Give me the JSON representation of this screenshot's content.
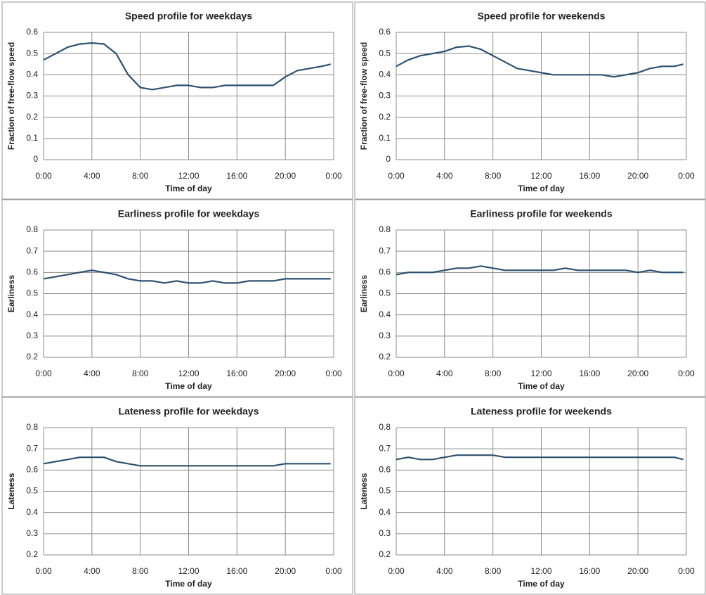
{
  "chart_data": [
    {
      "type": "line",
      "title": "Speed profile for weekdays",
      "x_label": "Time of day",
      "y_label": "Fraction of free-flow speed",
      "color": "#2e5070",
      "grid": true,
      "x": [
        0,
        1,
        2,
        3,
        4,
        5,
        6,
        7,
        8,
        9,
        10,
        11,
        12,
        13,
        14,
        15,
        16,
        17,
        18,
        19,
        20,
        21,
        22,
        23,
        23.75
      ],
      "values": [
        0.47,
        0.5,
        0.53,
        0.545,
        0.55,
        0.545,
        0.5,
        0.4,
        0.34,
        0.33,
        0.34,
        0.35,
        0.35,
        0.34,
        0.34,
        0.35,
        0.35,
        0.35,
        0.35,
        0.35,
        0.39,
        0.42,
        0.43,
        0.44,
        0.45
      ],
      "xlim": [
        0,
        24
      ],
      "xticks": [
        {
          "value": 0,
          "label": "0:00"
        },
        {
          "value": 4,
          "label": "4:00"
        },
        {
          "value": 8,
          "label": "8:00"
        },
        {
          "value": 12,
          "label": "12:00"
        },
        {
          "value": 16,
          "label": "16:00"
        },
        {
          "value": 20,
          "label": "20:00"
        },
        {
          "value": 24,
          "label": "0:00"
        }
      ],
      "ylim": [
        0,
        0.6
      ],
      "yticks": [
        0,
        0.1,
        0.2,
        0.3,
        0.4,
        0.5,
        0.6
      ]
    },
    {
      "type": "line",
      "title": "Speed profile for weekends",
      "x_label": "Time of day",
      "y_label": "Fraction of free-flow speed",
      "color": "#2e5070",
      "grid": true,
      "x": [
        0,
        1,
        2,
        3,
        4,
        5,
        6,
        7,
        8,
        9,
        10,
        11,
        12,
        13,
        14,
        15,
        16,
        17,
        18,
        19,
        20,
        21,
        22,
        23,
        23.75
      ],
      "values": [
        0.44,
        0.47,
        0.49,
        0.5,
        0.51,
        0.53,
        0.535,
        0.52,
        0.49,
        0.46,
        0.43,
        0.42,
        0.41,
        0.4,
        0.4,
        0.4,
        0.4,
        0.4,
        0.39,
        0.4,
        0.41,
        0.43,
        0.44,
        0.44,
        0.45
      ],
      "xlim": [
        0,
        24
      ],
      "xticks": [
        {
          "value": 0,
          "label": "0:00"
        },
        {
          "value": 4,
          "label": "4:00"
        },
        {
          "value": 8,
          "label": "8:00"
        },
        {
          "value": 12,
          "label": "12:00"
        },
        {
          "value": 16,
          "label": "16:00"
        },
        {
          "value": 20,
          "label": "20:00"
        },
        {
          "value": 24,
          "label": "0:00"
        }
      ],
      "ylim": [
        0,
        0.6
      ],
      "yticks": [
        0,
        0.1,
        0.2,
        0.3,
        0.4,
        0.5,
        0.6
      ]
    },
    {
      "type": "line",
      "title": "Earliness profile for weekdays",
      "x_label": "Time of day",
      "y_label": "Earliness",
      "color": "#2e5070",
      "grid": true,
      "x": [
        0,
        1,
        2,
        3,
        4,
        5,
        6,
        7,
        8,
        9,
        10,
        11,
        12,
        13,
        14,
        15,
        16,
        17,
        18,
        19,
        20,
        21,
        22,
        23,
        23.75
      ],
      "values": [
        0.57,
        0.58,
        0.59,
        0.6,
        0.61,
        0.6,
        0.59,
        0.57,
        0.56,
        0.56,
        0.55,
        0.56,
        0.55,
        0.55,
        0.56,
        0.55,
        0.55,
        0.56,
        0.56,
        0.56,
        0.57,
        0.57,
        0.57,
        0.57,
        0.57
      ],
      "xlim": [
        0,
        24
      ],
      "xticks": [
        {
          "value": 0,
          "label": "0:00"
        },
        {
          "value": 4,
          "label": "4:00"
        },
        {
          "value": 8,
          "label": "8:00"
        },
        {
          "value": 12,
          "label": "12:00"
        },
        {
          "value": 16,
          "label": "16:00"
        },
        {
          "value": 20,
          "label": "20:00"
        },
        {
          "value": 24,
          "label": "0:00"
        }
      ],
      "ylim": [
        0.2,
        0.8
      ],
      "yticks": [
        0.2,
        0.3,
        0.4,
        0.5,
        0.6,
        0.7,
        0.8
      ]
    },
    {
      "type": "line",
      "title": "Earliness profile for weekends",
      "x_label": "Time of day",
      "y_label": "Earliness",
      "color": "#2e5070",
      "grid": true,
      "x": [
        0,
        1,
        2,
        3,
        4,
        5,
        6,
        7,
        8,
        9,
        10,
        11,
        12,
        13,
        14,
        15,
        16,
        17,
        18,
        19,
        20,
        21,
        22,
        23,
        23.75
      ],
      "values": [
        0.59,
        0.6,
        0.6,
        0.6,
        0.61,
        0.62,
        0.62,
        0.63,
        0.62,
        0.61,
        0.61,
        0.61,
        0.61,
        0.61,
        0.62,
        0.61,
        0.61,
        0.61,
        0.61,
        0.61,
        0.6,
        0.61,
        0.6,
        0.6,
        0.6
      ],
      "xlim": [
        0,
        24
      ],
      "xticks": [
        {
          "value": 0,
          "label": "0:00"
        },
        {
          "value": 4,
          "label": "4:00"
        },
        {
          "value": 8,
          "label": "8:00"
        },
        {
          "value": 12,
          "label": "12:00"
        },
        {
          "value": 16,
          "label": "16:00"
        },
        {
          "value": 20,
          "label": "20:00"
        },
        {
          "value": 24,
          "label": "0:00"
        }
      ],
      "ylim": [
        0.2,
        0.8
      ],
      "yticks": [
        0.2,
        0.3,
        0.4,
        0.5,
        0.6,
        0.7,
        0.8
      ]
    },
    {
      "type": "line",
      "title": "Lateness profile for weekdays",
      "x_label": "Time of day",
      "y_label": "Lateness",
      "color": "#2e5070",
      "grid": true,
      "x": [
        0,
        1,
        2,
        3,
        4,
        5,
        6,
        7,
        8,
        9,
        10,
        11,
        12,
        13,
        14,
        15,
        16,
        17,
        18,
        19,
        20,
        21,
        22,
        23,
        23.75
      ],
      "values": [
        0.63,
        0.64,
        0.65,
        0.66,
        0.66,
        0.66,
        0.64,
        0.63,
        0.62,
        0.62,
        0.62,
        0.62,
        0.62,
        0.62,
        0.62,
        0.62,
        0.62,
        0.62,
        0.62,
        0.62,
        0.63,
        0.63,
        0.63,
        0.63,
        0.63
      ],
      "xlim": [
        0,
        24
      ],
      "xticks": [
        {
          "value": 0,
          "label": "0:00"
        },
        {
          "value": 4,
          "label": "4:00"
        },
        {
          "value": 8,
          "label": "8:00"
        },
        {
          "value": 12,
          "label": "12:00"
        },
        {
          "value": 16,
          "label": "16:00"
        },
        {
          "value": 20,
          "label": "20:00"
        },
        {
          "value": 24,
          "label": "0:00"
        }
      ],
      "ylim": [
        0.2,
        0.8
      ],
      "yticks": [
        0.2,
        0.3,
        0.4,
        0.5,
        0.6,
        0.7,
        0.8
      ]
    },
    {
      "type": "line",
      "title": "Lateness profile for weekends",
      "x_label": "Time of day",
      "y_label": "Lateness",
      "color": "#2e5070",
      "grid": true,
      "x": [
        0,
        1,
        2,
        3,
        4,
        5,
        6,
        7,
        8,
        9,
        10,
        11,
        12,
        13,
        14,
        15,
        16,
        17,
        18,
        19,
        20,
        21,
        22,
        23,
        23.75
      ],
      "values": [
        0.65,
        0.66,
        0.65,
        0.65,
        0.66,
        0.67,
        0.67,
        0.67,
        0.67,
        0.66,
        0.66,
        0.66,
        0.66,
        0.66,
        0.66,
        0.66,
        0.66,
        0.66,
        0.66,
        0.66,
        0.66,
        0.66,
        0.66,
        0.66,
        0.65
      ],
      "xlim": [
        0,
        24
      ],
      "xticks": [
        {
          "value": 0,
          "label": "0:00"
        },
        {
          "value": 4,
          "label": "4:00"
        },
        {
          "value": 8,
          "label": "8:00"
        },
        {
          "value": 12,
          "label": "12:00"
        },
        {
          "value": 16,
          "label": "16:00"
        },
        {
          "value": 20,
          "label": "20:00"
        },
        {
          "value": 24,
          "label": "0:00"
        }
      ],
      "ylim": [
        0.2,
        0.8
      ],
      "yticks": [
        0.2,
        0.3,
        0.4,
        0.5,
        0.6,
        0.7,
        0.8
      ]
    }
  ]
}
